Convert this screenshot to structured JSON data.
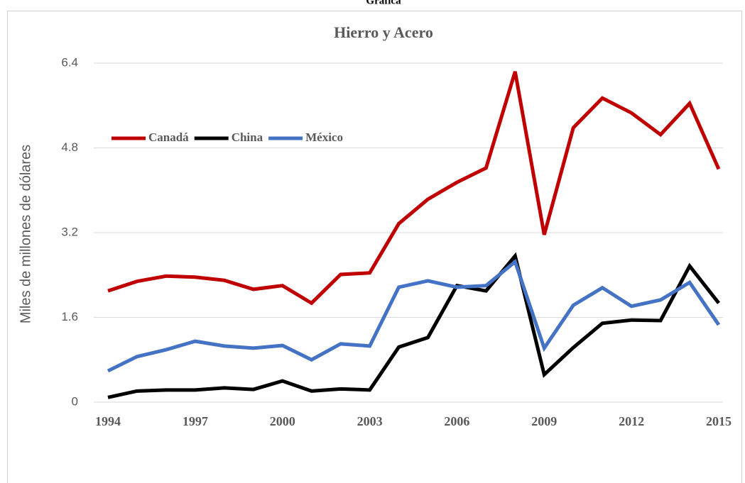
{
  "heading": "Gráfica",
  "chart_data": {
    "type": "line",
    "title": "Hierro y Acero",
    "y_label": "Miles de millones de dólares",
    "x": [
      1994,
      1995,
      1996,
      1997,
      1998,
      1999,
      2000,
      2001,
      2002,
      2003,
      2004,
      2005,
      2006,
      2007,
      2008,
      2009,
      2010,
      2011,
      2012,
      2013,
      2014,
      2015
    ],
    "xlim": [
      1994,
      2015
    ],
    "xticks": [
      1994,
      1997,
      2000,
      2003,
      2006,
      2009,
      2012,
      2015
    ],
    "ylim": [
      0,
      6.4
    ],
    "yticks": [
      0,
      1.6,
      3.2,
      4.8,
      6.4
    ],
    "grid": true,
    "legend": "top-left",
    "series": [
      {
        "name": "Canadá",
        "color": "#c00000",
        "values": [
          2.1,
          2.28,
          2.38,
          2.36,
          2.3,
          2.13,
          2.2,
          1.87,
          2.41,
          2.44,
          3.37,
          3.83,
          4.15,
          4.42,
          6.24,
          3.16,
          5.18,
          5.74,
          5.46,
          5.05,
          5.64,
          4.4
        ]
      },
      {
        "name": "China",
        "color": "#000000",
        "values": [
          0.09,
          0.21,
          0.23,
          0.23,
          0.27,
          0.24,
          0.4,
          0.21,
          0.25,
          0.23,
          1.04,
          1.22,
          2.2,
          2.1,
          2.76,
          0.52,
          1.03,
          1.49,
          1.55,
          1.54,
          2.57,
          1.87
        ]
      },
      {
        "name": "México",
        "color": "#4472c4",
        "values": [
          0.59,
          0.86,
          0.99,
          1.15,
          1.06,
          1.02,
          1.07,
          0.8,
          1.1,
          1.06,
          2.17,
          2.29,
          2.17,
          2.2,
          2.65,
          1.02,
          1.83,
          2.16,
          1.81,
          1.93,
          2.26,
          1.46
        ]
      }
    ]
  }
}
